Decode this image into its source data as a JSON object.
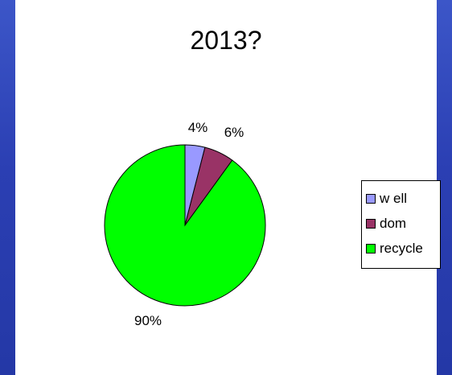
{
  "chart_data": {
    "type": "pie",
    "title": "2013?",
    "categories": [
      "w ell",
      "dom",
      "recycle"
    ],
    "values": [
      4,
      6,
      90
    ],
    "labels": [
      "4%",
      "6%",
      "90%"
    ],
    "colors": [
      "#9999ff",
      "#993366",
      "#00ff00"
    ],
    "legend_position": "right"
  }
}
